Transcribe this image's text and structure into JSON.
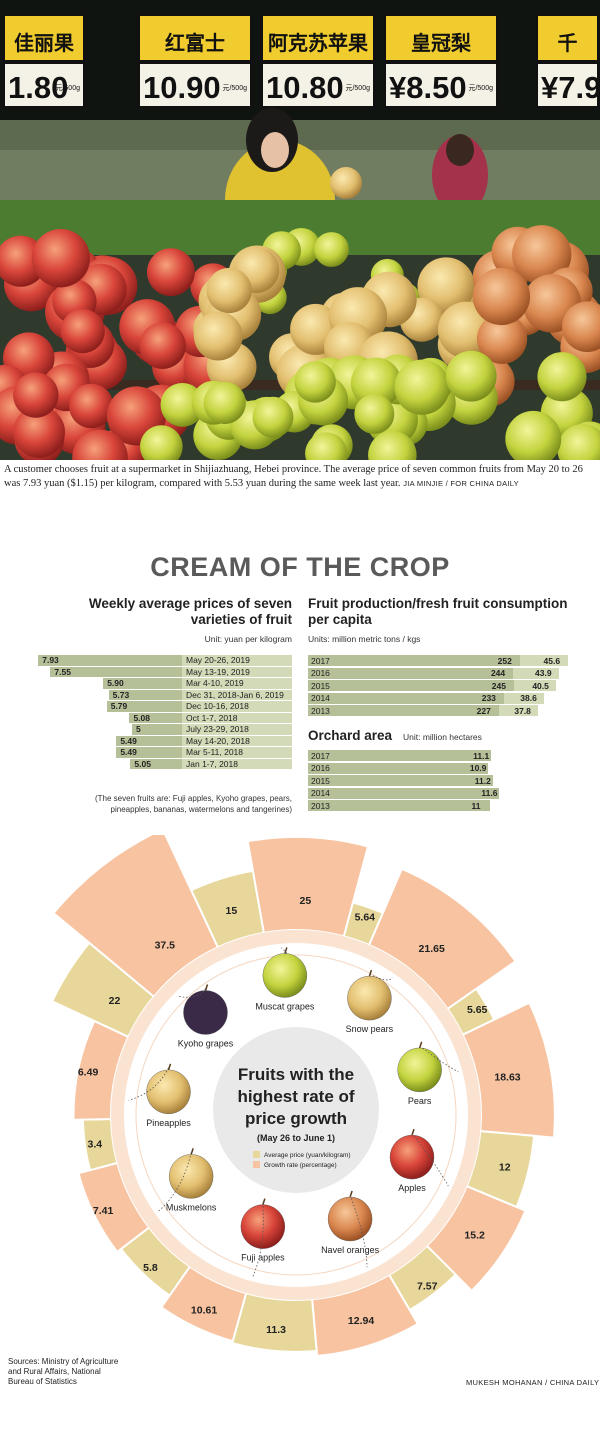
{
  "photo": {
    "signs": [
      {
        "name": "佳丽果",
        "price": "1.80",
        "unit": "元/500g"
      },
      {
        "name": "红富士",
        "price": "10.90",
        "unit": "元/500g"
      },
      {
        "name": "阿克苏苹果",
        "price": "10.80",
        "unit": "元/500g"
      },
      {
        "name": "皇冠梨",
        "price": "¥8.50",
        "unit": "元/500g"
      },
      {
        "name": "千",
        "price": "¥7.9",
        "unit": ""
      }
    ],
    "caption": "A customer chooses fruit at a supermarket in Shijiazhuang, Hebei province. The average price of seven common fruits from May 20 to 26 was 7.93 yuan ($1.15) per kilogram, compared with 5.53 yuan during the same week last year.",
    "credit": "JIA MINJIE / FOR CHINA DAILY"
  },
  "headline": "CREAM OF THE CROP",
  "chart_data": [
    {
      "type": "bar",
      "title": "Weekly average prices of seven varieties of fruit",
      "unit": "Unit: yuan per kilogram",
      "categories": [
        "May 20-26, 2019",
        "May 13-19, 2019",
        "Mar 4-10, 2019",
        "Dec 31, 2018-Jan 6, 2019",
        "Dec 10-16, 2018",
        "Oct 1-7, 2018",
        "July 23-29, 2018",
        "May 14-20, 2018",
        "Mar 5-11, 2018",
        "Jan 1-7, 2018"
      ],
      "values": [
        7.93,
        7.55,
        5.9,
        5.73,
        5.79,
        5.08,
        5,
        5.49,
        5.49,
        5.05
      ],
      "value_labels": [
        "7.93",
        "7.55",
        "5.90",
        "5.73",
        "5.79",
        "5.08",
        "5",
        "5.49",
        "5.49",
        "5.05"
      ],
      "note": "(The seven fruits are: Fuji apples, Kyoho grapes, pears, pineapples, bananas, watermelons and tangerines)"
    },
    {
      "type": "bar",
      "title": "Fruit production/fresh fruit consumption per capita",
      "unit": "Units: million metric tons / kgs",
      "categories": [
        "2017",
        "2016",
        "2015",
        "2014",
        "2013"
      ],
      "series": [
        {
          "values": [
            252,
            244,
            245,
            233,
            227
          ]
        },
        {
          "values": [
            45.6,
            43.9,
            40.5,
            38.6,
            37.8
          ]
        }
      ]
    },
    {
      "type": "bar",
      "title": "Orchard area",
      "unit": "Unit: million hectares",
      "categories": [
        "2017",
        "2016",
        "2015",
        "2014",
        "2013"
      ],
      "values": [
        11.1,
        10.9,
        11.2,
        11.6,
        11
      ]
    },
    {
      "type": "bar",
      "title": "Fruits with the highest rate of price growth",
      "subtitle": "(May 26 to June 1)",
      "legend": [
        "Average price (yuan/kilogram)",
        "Growth rate (percentage)"
      ],
      "colors": {
        "price": "#e8d79a",
        "growth": "#f7c3a0",
        "ring": "#fbe0cd"
      },
      "categories": [
        "Muscat grapes",
        "Snow pears",
        "Pears",
        "Apples",
        "Navel oranges",
        "Fuji apples",
        "Muskmelons",
        "Pineapples",
        "Kyoho grapes"
      ],
      "series": [
        {
          "name": "Average price (yuan/kilogram)",
          "values": [
            15,
            5.64,
            5.65,
            12,
            7.57,
            11.3,
            5.8,
            3.4,
            22
          ]
        },
        {
          "name": "Growth rate (percentage)",
          "values": [
            25,
            21.65,
            18.63,
            15.2,
            12.94,
            10.61,
            7.41,
            6.49,
            37.5
          ]
        }
      ]
    }
  ],
  "sources": "Sources: Ministry of Agriculture and Rural Affairs, National Bureau of Statistics",
  "graphic_credit": "MUKESH MOHANAN / CHINA DAILY"
}
